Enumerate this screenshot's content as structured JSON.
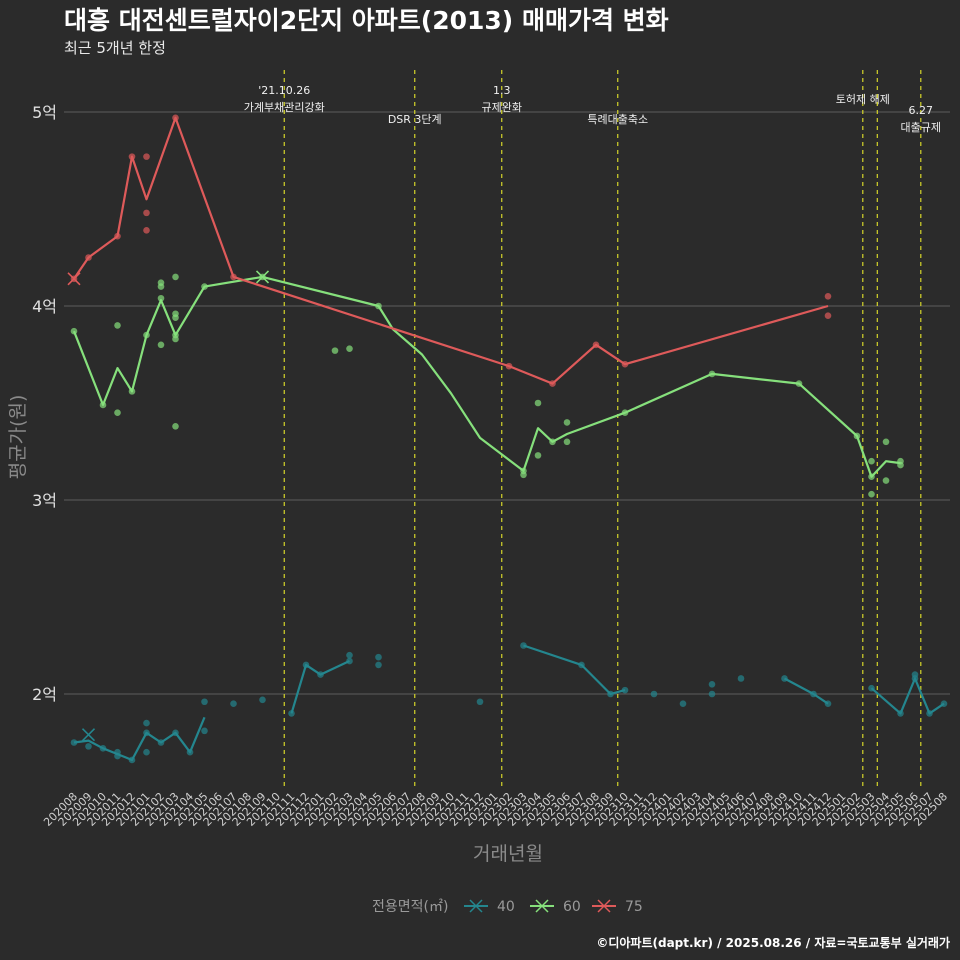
{
  "chart_data": {
    "type": "line",
    "title": "대흥 대전센트럴자이2단지 아파트(2013) 매매가격 변화",
    "subtitle": "최근 5개년 한정",
    "xlabel": "거래년월",
    "ylabel": "평균가(원)",
    "caption": "©디아파트(dapt.kr) / 2025.08.26 / 자료=국토교통부 실거래가",
    "legend": {
      "title": "전용면적(㎡)",
      "position": "bottom"
    },
    "ylim": [
      1.5,
      5.2
    ],
    "yticks": [
      {
        "value": 2,
        "label": "2억"
      },
      {
        "value": 3,
        "label": "3억"
      },
      {
        "value": 4,
        "label": "4억"
      },
      {
        "value": 5,
        "label": "5억"
      }
    ],
    "x_categories": [
      "202008",
      "202009",
      "202010",
      "202011",
      "202012",
      "202101",
      "202102",
      "202103",
      "202104",
      "202105",
      "202106",
      "202107",
      "202108",
      "202109",
      "202110",
      "202111",
      "202112",
      "202201",
      "202202",
      "202203",
      "202204",
      "202205",
      "202206",
      "202207",
      "202208",
      "202209",
      "202210",
      "202211",
      "202212",
      "202301",
      "202302",
      "202303",
      "202304",
      "202305",
      "202306",
      "202307",
      "202308",
      "202309",
      "202310",
      "202311",
      "202312",
      "202401",
      "202402",
      "202403",
      "202404",
      "202405",
      "202406",
      "202407",
      "202408",
      "202409",
      "202410",
      "202411",
      "202412",
      "202501",
      "202502",
      "202503",
      "202504",
      "202505",
      "202506",
      "202507",
      "202508"
    ],
    "grid": true,
    "events": [
      {
        "x": 14.5,
        "lines": [
          "'21.10.26",
          "가계부채관리강화"
        ]
      },
      {
        "x": 23.5,
        "lines": [
          "DSR 3단계"
        ]
      },
      {
        "x": 29.5,
        "lines": [
          "1.3",
          "규제완화"
        ]
      },
      {
        "x": 37.5,
        "lines": [
          "특례대출축소"
        ]
      },
      {
        "x": 54.4,
        "lines": [
          "토허제 해제"
        ]
      },
      {
        "x": 55.4,
        "lines": []
      },
      {
        "x": 58.4,
        "lines": [
          "6.27",
          "대출규제"
        ]
      }
    ],
    "series": [
      {
        "name": "40",
        "color": "#24868e",
        "line_segments": [
          [
            [
              0,
              1.75
            ],
            [
              1,
              1.76
            ],
            [
              2,
              1.72
            ],
            [
              3,
              1.69
            ],
            [
              4,
              1.66
            ],
            [
              5,
              1.8
            ],
            [
              6,
              1.75
            ],
            [
              7,
              1.8
            ],
            [
              8,
              1.7
            ],
            [
              9,
              1.88
            ]
          ],
          [
            [
              15,
              1.9
            ],
            [
              16,
              2.15
            ],
            [
              17,
              2.1
            ],
            [
              19,
              2.17
            ]
          ],
          [
            [
              31,
              2.25
            ],
            [
              35,
              2.15
            ],
            [
              37,
              2.0
            ],
            [
              38,
              2.02
            ]
          ],
          [
            [
              49,
              2.08
            ],
            [
              51,
              2.0
            ],
            [
              52,
              1.95
            ]
          ],
          [
            [
              55,
              2.03
            ],
            [
              57,
              1.9
            ],
            [
              58,
              2.08
            ],
            [
              59,
              1.9
            ],
            [
              60,
              1.95
            ]
          ]
        ],
        "points": [
          [
            0,
            1.75
          ],
          [
            1,
            1.73
          ],
          [
            2,
            1.72
          ],
          [
            3,
            1.68
          ],
          [
            3,
            1.7
          ],
          [
            4,
            1.66
          ],
          [
            5,
            1.8
          ],
          [
            5,
            1.85
          ],
          [
            5,
            1.7
          ],
          [
            6,
            1.75
          ],
          [
            7,
            1.8
          ],
          [
            8,
            1.7
          ],
          [
            9,
            1.81
          ],
          [
            9,
            1.96
          ],
          [
            11,
            1.95
          ],
          [
            13,
            1.97
          ],
          [
            15,
            1.9
          ],
          [
            16,
            2.15
          ],
          [
            17,
            2.1
          ],
          [
            19,
            2.17
          ],
          [
            19,
            2.2
          ],
          [
            21,
            2.15
          ],
          [
            21,
            2.19
          ],
          [
            28,
            1.96
          ],
          [
            31,
            2.25
          ],
          [
            35,
            2.15
          ],
          [
            37,
            2.0
          ],
          [
            38,
            2.02
          ],
          [
            40,
            2.0
          ],
          [
            42,
            1.95
          ],
          [
            44,
            2.0
          ],
          [
            44,
            2.05
          ],
          [
            46,
            2.08
          ],
          [
            49,
            2.08
          ],
          [
            51,
            2.0
          ],
          [
            52,
            1.95
          ],
          [
            55,
            2.03
          ],
          [
            57,
            1.9
          ],
          [
            58,
            2.08
          ],
          [
            58,
            2.1
          ],
          [
            59,
            1.9
          ],
          [
            60,
            1.95
          ]
        ],
        "crosses": [
          [
            1,
            1.79
          ]
        ]
      },
      {
        "name": "60",
        "color": "#86e07c",
        "line_segments": [
          [
            [
              0,
              3.87
            ],
            [
              2,
              3.49
            ],
            [
              3,
              3.68
            ],
            [
              4,
              3.56
            ],
            [
              5,
              3.85
            ],
            [
              6,
              4.03
            ],
            [
              7,
              3.85
            ],
            [
              9,
              4.1
            ],
            [
              13,
              4.15
            ],
            [
              21,
              4.0
            ],
            [
              22,
              3.88
            ],
            [
              24,
              3.75
            ],
            [
              26,
              3.55
            ],
            [
              28,
              3.32
            ],
            [
              31,
              3.15
            ],
            [
              32,
              3.37
            ],
            [
              33,
              3.3
            ],
            [
              34,
              3.34
            ],
            [
              38,
              3.45
            ],
            [
              44,
              3.65
            ],
            [
              50,
              3.6
            ],
            [
              54,
              3.33
            ],
            [
              55,
              3.12
            ],
            [
              56,
              3.2
            ],
            [
              57,
              3.19
            ]
          ]
        ],
        "points": [
          [
            0,
            3.87
          ],
          [
            2,
            3.49
          ],
          [
            3,
            3.45
          ],
          [
            3,
            3.9
          ],
          [
            4,
            3.56
          ],
          [
            5,
            3.85
          ],
          [
            6,
            3.8
          ],
          [
            6,
            4.04
          ],
          [
            6,
            4.1
          ],
          [
            6,
            4.12
          ],
          [
            7,
            3.38
          ],
          [
            7,
            3.83
          ],
          [
            7,
            3.85
          ],
          [
            7,
            3.94
          ],
          [
            7,
            3.96
          ],
          [
            7,
            4.15
          ],
          [
            9,
            4.1
          ],
          [
            13,
            4.15
          ],
          [
            18,
            3.77
          ],
          [
            19,
            3.78
          ],
          [
            21,
            4.0
          ],
          [
            31,
            3.15
          ],
          [
            31,
            3.13
          ],
          [
            32,
            3.23
          ],
          [
            32,
            3.5
          ],
          [
            33,
            3.3
          ],
          [
            34,
            3.3
          ],
          [
            34,
            3.4
          ],
          [
            38,
            3.45
          ],
          [
            44,
            3.65
          ],
          [
            50,
            3.6
          ],
          [
            54,
            3.33
          ],
          [
            55,
            3.03
          ],
          [
            55,
            3.2
          ],
          [
            55,
            3.12
          ],
          [
            56,
            3.1
          ],
          [
            56,
            3.3
          ],
          [
            57,
            3.18
          ],
          [
            57,
            3.2
          ]
        ],
        "crosses": [
          [
            13,
            4.15
          ]
        ]
      },
      {
        "name": "75",
        "color": "#de5a5a",
        "line_segments": [
          [
            [
              0,
              4.14
            ],
            [
              1,
              4.25
            ],
            [
              3,
              4.36
            ],
            [
              4,
              4.77
            ],
            [
              5,
              4.55
            ],
            [
              7,
              4.97
            ],
            [
              11,
              4.15
            ],
            [
              30,
              3.69
            ],
            [
              33,
              3.6
            ],
            [
              36,
              3.8
            ],
            [
              38,
              3.7
            ],
            [
              52,
              4.0
            ]
          ]
        ],
        "points": [
          [
            0,
            4.14
          ],
          [
            1,
            4.25
          ],
          [
            3,
            4.36
          ],
          [
            4,
            4.77
          ],
          [
            5,
            4.39
          ],
          [
            5,
            4.48
          ],
          [
            5,
            4.77
          ],
          [
            7,
            4.97
          ],
          [
            11,
            4.15
          ],
          [
            30,
            3.69
          ],
          [
            33,
            3.6
          ],
          [
            36,
            3.8
          ],
          [
            38,
            3.7
          ],
          [
            52,
            3.95
          ],
          [
            52,
            4.05
          ]
        ],
        "crosses": [
          [
            0,
            4.14
          ]
        ]
      }
    ]
  }
}
